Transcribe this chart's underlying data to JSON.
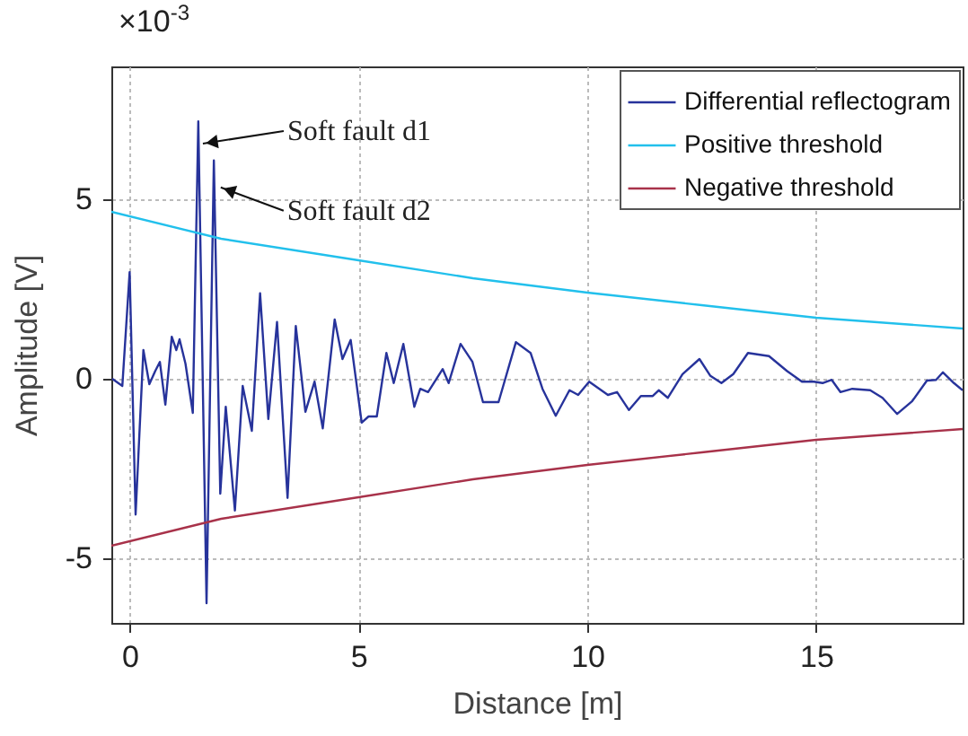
{
  "chart_data": {
    "type": "line",
    "xlabel": "Distance [m]",
    "ylabel": "Amplitude [V]",
    "xlim": [
      -0.4,
      18.2
    ],
    "ylim": [
      -6.8,
      8.7
    ],
    "xticks": [
      0,
      5,
      10,
      15
    ],
    "yticks": [
      -5,
      0,
      5
    ],
    "grid": true,
    "legend": "top right",
    "line_style": "solid",
    "annotations": [
      "×10$^{-3}$",
      {
        "text": "Soft fault d1",
        "x": 1.6,
        "y": 6.55
      },
      {
        "text": "Soft fault d2",
        "x": 1.99,
        "y": 5.33
      }
    ],
    "series": [
      {
        "name": "Differential reflectogram",
        "color": "#27339b",
        "x": [
          -0.38,
          -0.16,
          0,
          0.13,
          0.3,
          0.43,
          0.56,
          0.66,
          0.78,
          0.92,
          1.02,
          1.09,
          1.22,
          1.38,
          1.5,
          1.68,
          1.84,
          1.98,
          2.1,
          2.3,
          2.47,
          2.67,
          2.85,
          3.03,
          3.22,
          3.45,
          3.63,
          3.84,
          4.04,
          4.22,
          4.48,
          4.65,
          4.83,
          5.07,
          5.22,
          5.4,
          5.61,
          5.77,
          5.98,
          6.22,
          6.35,
          6.52,
          6.84,
          6.97,
          7.23,
          7.49,
          7.72,
          8.06,
          8.44,
          8.76,
          9.02,
          9.31,
          9.61,
          9.8,
          10.04,
          10.45,
          10.65,
          10.91,
          11.17,
          11.43,
          11.56,
          11.76,
          12.08,
          12.45,
          12.69,
          12.93,
          13.19,
          13.51,
          13.97,
          14.36,
          14.69,
          14.95,
          15.14,
          15.34,
          15.53,
          15.79,
          16.18,
          16.45,
          16.77,
          17.1,
          17.42,
          17.62,
          17.77,
          18.01,
          18.2
        ],
        "values": [
          0,
          -0.2,
          2.97,
          -3.78,
          0.8,
          -0.15,
          0.22,
          0.47,
          -0.72,
          1.17,
          0.8,
          1.1,
          0.42,
          -0.95,
          7.17,
          -6.25,
          6.08,
          -3.2,
          -0.78,
          -3.67,
          -0.2,
          -1.45,
          2.38,
          -1.12,
          1.58,
          -3.32,
          1.47,
          -0.92,
          -0.08,
          -1.38,
          1.65,
          0.55,
          1.08,
          -1.22,
          -1.05,
          -1.05,
          0.72,
          -0.12,
          0.97,
          -0.78,
          -0.28,
          -0.37,
          0.27,
          -0.12,
          0.97,
          0.47,
          -0.65,
          -0.65,
          1.02,
          0.72,
          -0.28,
          -1.03,
          -0.32,
          -0.45,
          -0.08,
          -0.45,
          -0.37,
          -0.87,
          -0.48,
          -0.48,
          -0.32,
          -0.53,
          0.13,
          0.55,
          0.08,
          -0.12,
          0.13,
          0.72,
          0.63,
          0.22,
          -0.08,
          -0.08,
          -0.12,
          -0.03,
          -0.37,
          -0.28,
          -0.32,
          -0.53,
          -0.98,
          -0.62,
          -0.05,
          -0.03,
          0.18,
          -0.12,
          -0.32
        ]
      },
      {
        "name": "Positive threshold",
        "color": "#22c0ec",
        "x": [
          -0.4,
          2,
          5,
          7.5,
          10,
          12.5,
          15,
          18.2
        ],
        "values": [
          4.65,
          3.9,
          3.3,
          2.8,
          2.4,
          2.05,
          1.7,
          1.4
        ]
      },
      {
        "name": "Negative threshold",
        "color": "#a8324a",
        "x": [
          -0.4,
          2,
          5,
          7.5,
          10,
          12.5,
          15,
          18.2
        ],
        "values": [
          -4.65,
          -3.9,
          -3.3,
          -2.8,
          -2.4,
          -2.05,
          -1.7,
          -1.4
        ]
      }
    ]
  }
}
